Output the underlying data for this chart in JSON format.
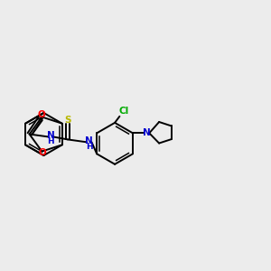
{
  "background_color": "#ececec",
  "bond_color": "#000000",
  "atom_colors": {
    "O": "#ff0000",
    "N": "#0000cd",
    "S": "#b8b800",
    "Cl": "#00aa00",
    "C": "#000000",
    "H": "#000000"
  },
  "figsize": [
    3.0,
    3.0
  ],
  "dpi": 100,
  "xlim": [
    0,
    10
  ],
  "ylim": [
    0,
    10
  ]
}
